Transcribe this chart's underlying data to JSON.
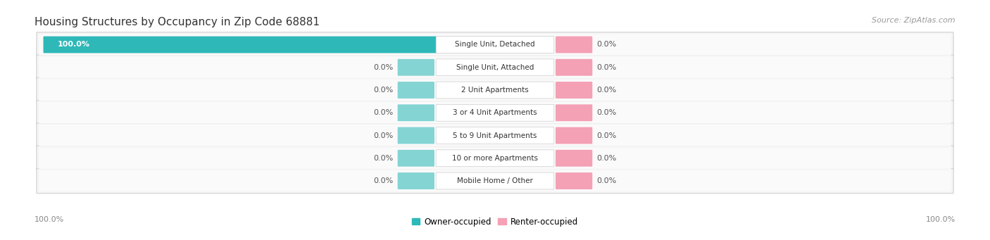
{
  "title": "Housing Structures by Occupancy in Zip Code 68881",
  "source": "Source: ZipAtlas.com",
  "categories": [
    "Single Unit, Detached",
    "Single Unit, Attached",
    "2 Unit Apartments",
    "3 or 4 Unit Apartments",
    "5 to 9 Unit Apartments",
    "10 or more Apartments",
    "Mobile Home / Other"
  ],
  "owner_values": [
    100.0,
    0.0,
    0.0,
    0.0,
    0.0,
    0.0,
    0.0
  ],
  "renter_values": [
    0.0,
    0.0,
    0.0,
    0.0,
    0.0,
    0.0,
    0.0
  ],
  "owner_color": "#2eb8b8",
  "renter_color": "#f4a0b5",
  "stub_owner_color": "#85d4d4",
  "row_bg_color": "#efefef",
  "row_inner_color": "#f8f8f8",
  "label_color": "#555555",
  "title_color": "#333333",
  "source_color": "#999999",
  "axis_label_color": "#888888",
  "figsize": [
    14.06,
    3.41
  ],
  "dpi": 100
}
